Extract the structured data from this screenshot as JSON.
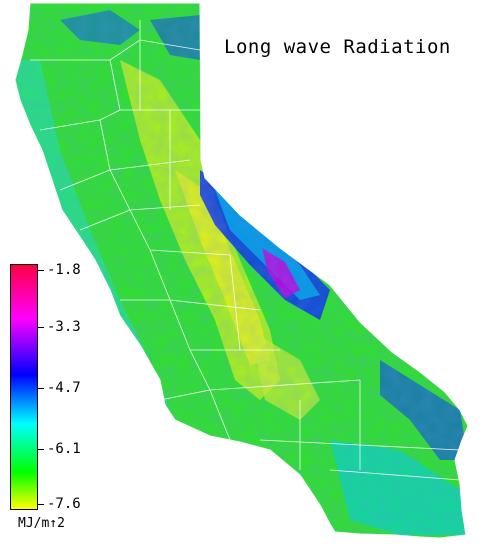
{
  "title": "Long wave Radiation",
  "legend": {
    "ticks": [
      "-1.8",
      "-3.3",
      "-4.7",
      "-6.1",
      "-7.6"
    ],
    "units": "MJ/m↑2",
    "colors": [
      "#ff0044",
      "#ff00ff",
      "#0000ff",
      "#00ffff",
      "#00ff00",
      "#ffff00"
    ]
  },
  "palette": {
    "green": "#33dd33",
    "yellow_green": "#ccee22",
    "cyan": "#00ddee",
    "blue": "#1133ee",
    "magenta": "#ee00ee",
    "border": "#ffffff"
  }
}
